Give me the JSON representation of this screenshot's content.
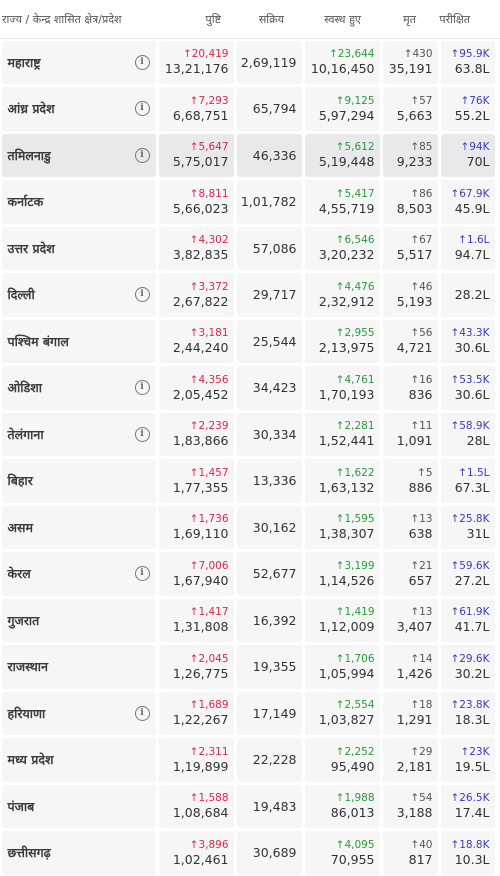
{
  "header": {
    "state": "राज्य / केन्द्र शासित क्षेत्र/प्रदेश",
    "confirmed": "पुष्टि",
    "active": "सक्रिय",
    "recovered": "स्वस्थ हुए",
    "deceased": "मृत",
    "tested": "परीक्षित"
  },
  "rows": [
    {
      "name": "महाराष्ट्र",
      "info": true,
      "conf_d": "↑20,419",
      "conf": "13,21,176",
      "active": "2,69,119",
      "rec_d": "↑23,644",
      "rec": "10,16,450",
      "dec_d": "↑430",
      "dec": "35,191",
      "test_d": "↑95.9K",
      "test": "63.8L"
    },
    {
      "name": "आंध्र प्रदेश",
      "info": true,
      "conf_d": "↑7,293",
      "conf": "6,68,751",
      "active": "65,794",
      "rec_d": "↑9,125",
      "rec": "5,97,294",
      "dec_d": "↑57",
      "dec": "5,663",
      "test_d": "↑76K",
      "test": "55.2L"
    },
    {
      "name": "तमिलनाडु",
      "info": true,
      "conf_d": "↑5,647",
      "conf": "5,75,017",
      "active": "46,336",
      "rec_d": "↑5,612",
      "rec": "5,19,448",
      "dec_d": "↑85",
      "dec": "9,233",
      "test_d": "↑94K",
      "test": "70L"
    },
    {
      "name": "कर्नाटक",
      "info": false,
      "conf_d": "↑8,811",
      "conf": "5,66,023",
      "active": "1,01,782",
      "rec_d": "↑5,417",
      "rec": "4,55,719",
      "dec_d": "↑86",
      "dec": "8,503",
      "test_d": "↑67.9K",
      "test": "45.9L"
    },
    {
      "name": "उत्तर प्रदेश",
      "info": false,
      "conf_d": "↑4,302",
      "conf": "3,82,835",
      "active": "57,086",
      "rec_d": "↑6,546",
      "rec": "3,20,232",
      "dec_d": "↑67",
      "dec": "5,517",
      "test_d": "↑1.6L",
      "test": "94.7L"
    },
    {
      "name": "दिल्ली",
      "info": true,
      "conf_d": "↑3,372",
      "conf": "2,67,822",
      "active": "29,717",
      "rec_d": "↑4,476",
      "rec": "2,32,912",
      "dec_d": "↑46",
      "dec": "5,193",
      "test_d": "",
      "test": "28.2L"
    },
    {
      "name": "पश्चिम बंगाल",
      "info": false,
      "conf_d": "↑3,181",
      "conf": "2,44,240",
      "active": "25,544",
      "rec_d": "↑2,955",
      "rec": "2,13,975",
      "dec_d": "↑56",
      "dec": "4,721",
      "test_d": "↑43.3K",
      "test": "30.6L"
    },
    {
      "name": "ओडिशा",
      "info": true,
      "conf_d": "↑4,356",
      "conf": "2,05,452",
      "active": "34,423",
      "rec_d": "↑4,761",
      "rec": "1,70,193",
      "dec_d": "↑16",
      "dec": "836",
      "test_d": "↑53.5K",
      "test": "30.6L"
    },
    {
      "name": "तेलंगाना",
      "info": true,
      "conf_d": "↑2,239",
      "conf": "1,83,866",
      "active": "30,334",
      "rec_d": "↑2,281",
      "rec": "1,52,441",
      "dec_d": "↑11",
      "dec": "1,091",
      "test_d": "↑58.9K",
      "test": "28L"
    },
    {
      "name": "बिहार",
      "info": false,
      "conf_d": "↑1,457",
      "conf": "1,77,355",
      "active": "13,336",
      "rec_d": "↑1,622",
      "rec": "1,63,132",
      "dec_d": "↑5",
      "dec": "886",
      "test_d": "↑1.5L",
      "test": "67.3L"
    },
    {
      "name": "असम",
      "info": false,
      "conf_d": "↑1,736",
      "conf": "1,69,110",
      "active": "30,162",
      "rec_d": "↑1,595",
      "rec": "1,38,307",
      "dec_d": "↑13",
      "dec": "638",
      "test_d": "↑25.8K",
      "test": "31L"
    },
    {
      "name": "केरल",
      "info": true,
      "conf_d": "↑7,006",
      "conf": "1,67,940",
      "active": "52,677",
      "rec_d": "↑3,199",
      "rec": "1,14,526",
      "dec_d": "↑21",
      "dec": "657",
      "test_d": "↑59.6K",
      "test": "27.2L"
    },
    {
      "name": "गुजरात",
      "info": false,
      "conf_d": "↑1,417",
      "conf": "1,31,808",
      "active": "16,392",
      "rec_d": "↑1,419",
      "rec": "1,12,009",
      "dec_d": "↑13",
      "dec": "3,407",
      "test_d": "↑61.9K",
      "test": "41.7L"
    },
    {
      "name": "राजस्थान",
      "info": false,
      "conf_d": "↑2,045",
      "conf": "1,26,775",
      "active": "19,355",
      "rec_d": "↑1,706",
      "rec": "1,05,994",
      "dec_d": "↑14",
      "dec": "1,426",
      "test_d": "↑29.6K",
      "test": "30.2L"
    },
    {
      "name": "हरियाणा",
      "info": true,
      "conf_d": "↑1,689",
      "conf": "1,22,267",
      "active": "17,149",
      "rec_d": "↑2,554",
      "rec": "1,03,827",
      "dec_d": "↑18",
      "dec": "1,291",
      "test_d": "↑23.8K",
      "test": "18.3L"
    },
    {
      "name": "मध्य प्रदेश",
      "info": false,
      "conf_d": "↑2,311",
      "conf": "1,19,899",
      "active": "22,228",
      "rec_d": "↑2,252",
      "rec": "95,490",
      "dec_d": "↑29",
      "dec": "2,181",
      "test_d": "↑23K",
      "test": "19.5L"
    },
    {
      "name": "पंजाब",
      "info": false,
      "conf_d": "↑1,588",
      "conf": "1,08,684",
      "active": "19,483",
      "rec_d": "↑1,988",
      "rec": "86,013",
      "dec_d": "↑54",
      "dec": "3,188",
      "test_d": "↑26.5K",
      "test": "17.4L"
    },
    {
      "name": "छत्तीसगढ़",
      "info": false,
      "conf_d": "↑3,896",
      "conf": "1,02,461",
      "active": "30,689",
      "rec_d": "↑4,095",
      "rec": "70,955",
      "dec_d": "↑40",
      "dec": "817",
      "test_d": "↑18.8K",
      "test": "10.3L"
    }
  ],
  "highlight_row": 2,
  "icons": {
    "info": "info-icon"
  }
}
